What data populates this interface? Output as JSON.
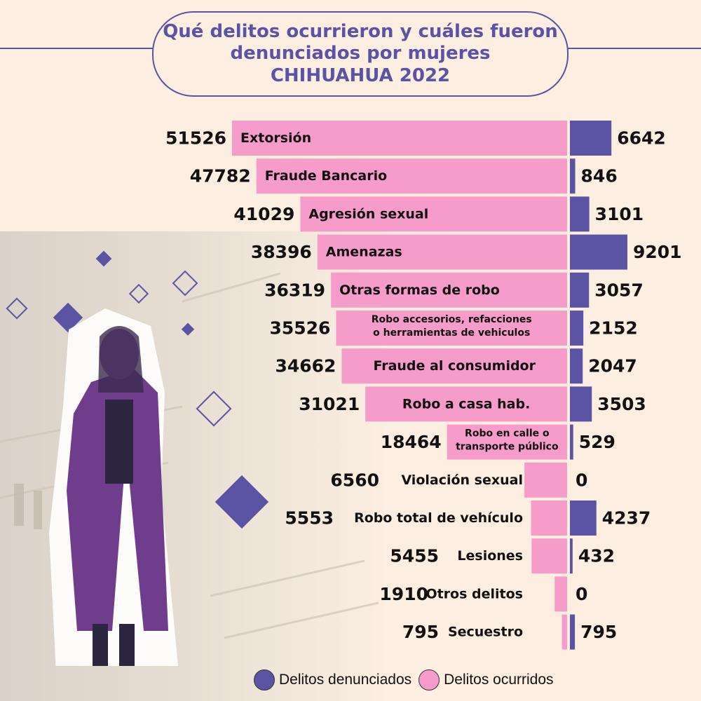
{
  "title": {
    "line1": "Qué delitos ocurrieron y cuáles fueron",
    "line2": "denunciados por mujeres",
    "line3": "CHIHUAHUA 2022"
  },
  "colors": {
    "ocurridos": "#f59ccb",
    "denunciados": "#5b53a3",
    "accent": "#5b53a3"
  },
  "legend": {
    "denunciados": "Delitos denunciados",
    "ocurridos": "Delitos ocurridos"
  },
  "chart_data": {
    "type": "bar",
    "orientation": "horizontal-diverging",
    "title": "Qué delitos ocurrieron y cuáles fueron denunciados por mujeres CHIHUAHUA 2022",
    "categories": [
      "Extorsión",
      "Fraude Bancario",
      "Agresión sexual",
      "Amenazas",
      "Otras formas de robo",
      "Robo accesorios, refacciones o herramientas de vehículos",
      "Fraude al consumidor",
      "Robo a casa hab.",
      "Robo en calle o transporte público",
      "Violación sexual",
      "Robo total de vehículo",
      "Lesiones",
      "Otros delitos",
      "Secuestro"
    ],
    "category_lines": [
      [
        "Extorsión"
      ],
      [
        "Fraude Bancario"
      ],
      [
        "Agresión sexual"
      ],
      [
        "Amenazas"
      ],
      [
        "Otras formas de robo"
      ],
      [
        "Robo accesorios, refacciones",
        "o herramientas de vehiculos"
      ],
      [
        "Fraude al consumidor"
      ],
      [
        "Robo a casa hab."
      ],
      [
        "Robo en calle o",
        "transporte público"
      ],
      [
        "Violación sexual"
      ],
      [
        "Robo total de vehículo"
      ],
      [
        "Lesiones"
      ],
      [
        "Otros delitos"
      ],
      [
        "Secuestro"
      ]
    ],
    "series": [
      {
        "name": "Delitos ocurridos",
        "values": [
          51526,
          47782,
          41029,
          38396,
          36319,
          35526,
          34662,
          31021,
          18464,
          6560,
          5553,
          5455,
          1910,
          795
        ]
      },
      {
        "name": "Delitos denunciados",
        "values": [
          6642,
          846,
          3101,
          9201,
          3057,
          2152,
          2047,
          3503,
          529,
          0,
          4237,
          432,
          0,
          795
        ]
      }
    ],
    "legend_position": "bottom"
  }
}
